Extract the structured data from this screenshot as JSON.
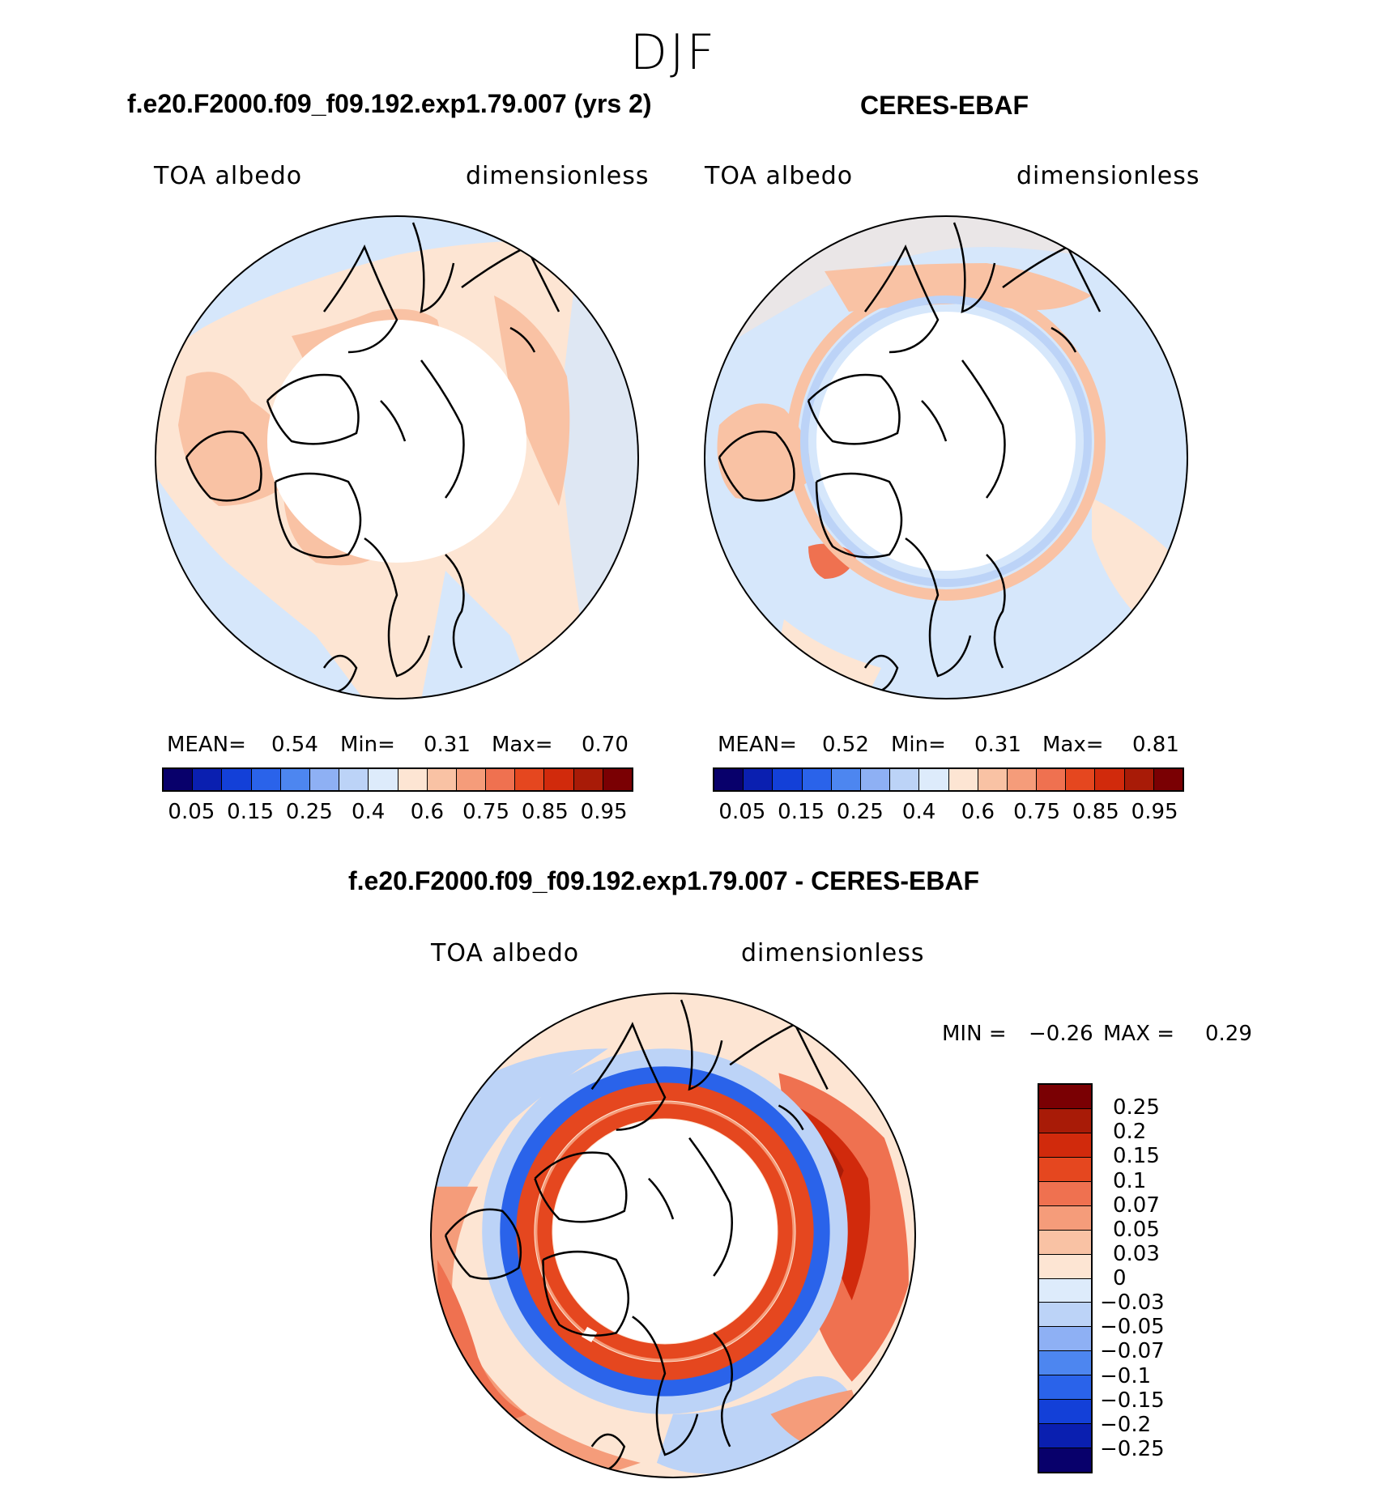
{
  "figure": {
    "season": "DJF",
    "panels": [
      {
        "title": "f.e20.F2000.f09_f09.192.exp1.79.007 (yrs 2)",
        "variable": "TOA albedo",
        "units": "dimensionless",
        "stats": {
          "mean_label": "MEAN=",
          "mean": "0.54",
          "min_label": "Min=",
          "min": "0.31",
          "max_label": "Max=",
          "max": "0.70"
        }
      },
      {
        "title": "CERES-EBAF",
        "variable": "TOA albedo",
        "units": "dimensionless",
        "stats": {
          "mean_label": "MEAN=",
          "mean": "0.52",
          "min_label": "Min=",
          "min": "0.31",
          "max_label": "Max=",
          "max": "0.81"
        }
      },
      {
        "title": "f.e20.F2000.f09_f09.192.exp1.79.007 - CERES-EBAF",
        "variable": "TOA albedo",
        "units": "dimensionless",
        "minmax": {
          "min_label": "MIN =",
          "min": "−0.26",
          "max_label": "MAX =",
          "max": "0.29"
        }
      }
    ],
    "abs_colorbar": {
      "colors": [
        "#08006b",
        "#0a1fb0",
        "#1340d8",
        "#2a63ea",
        "#4d86f0",
        "#8eb0f4",
        "#bcd3f7",
        "#ddebfb",
        "#fde5d3",
        "#f9c2a4",
        "#f59c7a",
        "#ef7150",
        "#e5471f",
        "#d12a0c",
        "#a81b07",
        "#7a0003"
      ],
      "tick_labels": [
        "0.05",
        "0.15",
        "0.25",
        "0.4",
        "0.6",
        "0.75",
        "0.85",
        "0.95"
      ]
    },
    "diff_colorbar": {
      "colors": [
        "#7a0003",
        "#a81b07",
        "#d12a0c",
        "#e5471f",
        "#ef7150",
        "#f59c7a",
        "#f9c2a4",
        "#fde5d3",
        "#ddebfb",
        "#bcd3f7",
        "#8eb0f4",
        "#4d86f0",
        "#2a63ea",
        "#1340d8",
        "#0a1fb0",
        "#08006b"
      ],
      "tick_labels": [
        "0.25",
        "0.2",
        "0.15",
        "0.1",
        "0.07",
        "0.05",
        "0.03",
        "0",
        "−0.03",
        "−0.05",
        "−0.07",
        "−0.1",
        "−0.15",
        "−0.2",
        "−0.25"
      ]
    },
    "map_colors": {
      "land_line": "#000000",
      "pale_blue": "#d6e7fb",
      "light_blue": "#bcd3f7",
      "mid_blue": "#4d86f0",
      "pale_orange": "#fde5d3",
      "light_orange": "#f9c2a4",
      "mid_orange": "#ef7150",
      "red": "#d12a0c",
      "dark_red": "#a81b07"
    }
  }
}
